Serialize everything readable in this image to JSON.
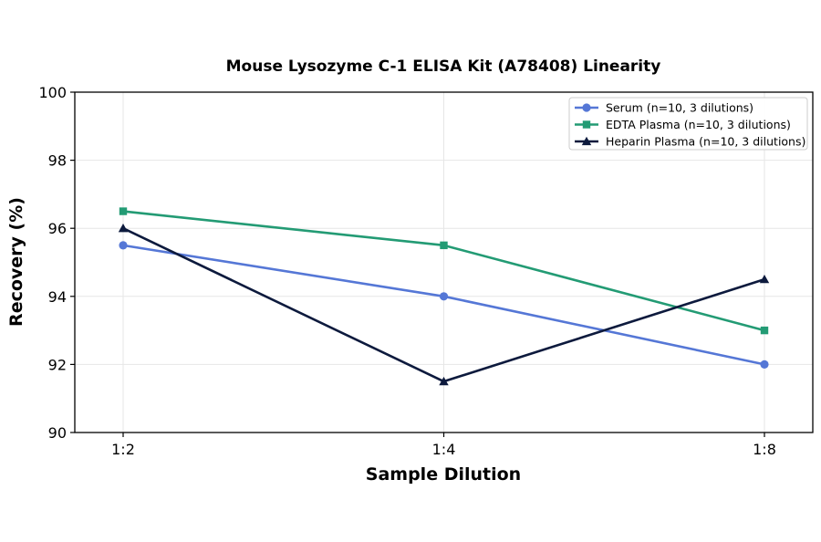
{
  "chart_data": {
    "type": "line",
    "title": "Mouse Lysozyme C-1 ELISA Kit (A78408) Linearity",
    "xlabel": "Sample Dilution",
    "ylabel": "Recovery (%)",
    "categories": [
      "1:2",
      "1:4",
      "1:8"
    ],
    "ylim": [
      90,
      100
    ],
    "yticks": [
      90,
      92,
      94,
      96,
      98,
      100
    ],
    "grid": true,
    "legend_position": "top-right",
    "series": [
      {
        "name": "Serum (n=10, 3 dilutions)",
        "values": [
          95.5,
          94.0,
          92.0
        ],
        "color": "#5577d6",
        "marker": "circle"
      },
      {
        "name": "EDTA Plasma (n=10, 3 dilutions)",
        "values": [
          96.5,
          95.5,
          93.0
        ],
        "color": "#239b74",
        "marker": "square"
      },
      {
        "name": "Heparin Plasma (n=10, 3 dilutions)",
        "values": [
          96.0,
          91.5,
          94.5
        ],
        "color": "#0d1a3d",
        "marker": "triangle"
      }
    ]
  }
}
